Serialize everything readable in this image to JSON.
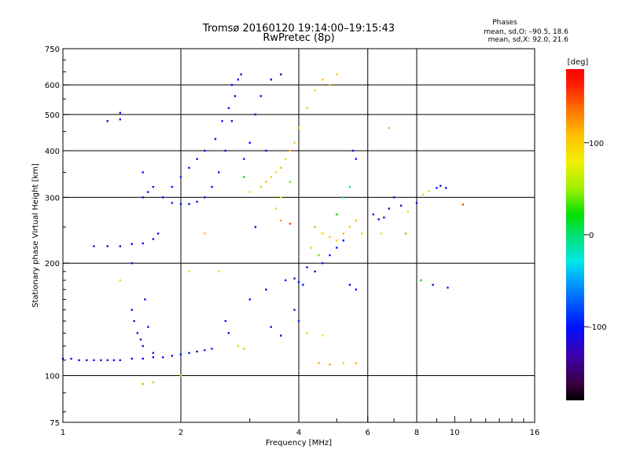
{
  "title": {
    "line1": "Tromsø 20160120 19:14:00–19:15:43",
    "line2": "RwPretec (8p)"
  },
  "stats": {
    "heading": "Phases",
    "o_line": "mean, sd,O: –90.5, 18.6",
    "x_line": "mean, sd,X:  92.0, 21.6"
  },
  "colorbar": {
    "unit": "[deg]",
    "range": [
      -180,
      180
    ],
    "ticks": [
      {
        "value": 100,
        "label": "100"
      },
      {
        "value": 0,
        "label": "0"
      },
      {
        "value": -100,
        "label": "-100"
      }
    ]
  },
  "chart_data": {
    "type": "scatter",
    "xlabel": "Frequency [MHz]",
    "ylabel": "Stationary phase Virtual Height [km]",
    "xscale": "log",
    "yscale": "log",
    "xlim": [
      1,
      16
    ],
    "ylim": [
      75,
      750
    ],
    "grid": true,
    "xticks": [
      {
        "value": 1,
        "label": "1",
        "major": true
      },
      {
        "value": 2,
        "label": "2",
        "major": true
      },
      {
        "value": 4,
        "label": "4",
        "major": true
      },
      {
        "value": 6,
        "label": "6",
        "major": true
      },
      {
        "value": 8,
        "label": "8",
        "major": true
      },
      {
        "value": 10,
        "label": "10",
        "major": false
      },
      {
        "value": 16,
        "label": "16",
        "major": true
      }
    ],
    "yticks": [
      {
        "value": 75,
        "label": "75",
        "major": false
      },
      {
        "value": 100,
        "label": "100",
        "major": true
      },
      {
        "value": 200,
        "label": "200",
        "major": true
      },
      {
        "value": 300,
        "label": "300",
        "major": true
      },
      {
        "value": 400,
        "label": "400",
        "major": true
      },
      {
        "value": 500,
        "label": "500",
        "major": true
      },
      {
        "value": 600,
        "label": "600",
        "major": true
      },
      {
        "value": 750,
        "label": "750",
        "major": false
      }
    ],
    "series": [
      {
        "points": [
          [
            1.0,
            111,
            -110
          ],
          [
            1.05,
            111,
            -115
          ],
          [
            1.1,
            110,
            -108
          ],
          [
            1.15,
            110,
            -105
          ],
          [
            1.2,
            110,
            -100
          ],
          [
            1.25,
            110,
            -110
          ],
          [
            1.3,
            110,
            -112
          ],
          [
            1.35,
            110,
            -105
          ],
          [
            1.4,
            110,
            -108
          ],
          [
            1.5,
            111,
            -110
          ],
          [
            1.6,
            111,
            -100
          ],
          [
            1.7,
            112,
            -105
          ],
          [
            1.8,
            112,
            -108
          ],
          [
            1.9,
            113,
            -110
          ],
          [
            2.0,
            114,
            -105
          ],
          [
            2.1,
            115,
            -100
          ],
          [
            2.2,
            116,
            -108
          ],
          [
            2.3,
            117,
            -110
          ],
          [
            2.4,
            118,
            -90
          ]
        ]
      },
      {
        "points": [
          [
            1.5,
            150,
            -110
          ],
          [
            1.52,
            140,
            -105
          ],
          [
            1.55,
            130,
            -100
          ],
          [
            1.58,
            125,
            -108
          ],
          [
            1.6,
            120,
            -110
          ],
          [
            1.62,
            160,
            -105
          ],
          [
            1.65,
            135,
            -100
          ],
          [
            1.7,
            115,
            -110
          ],
          [
            2.6,
            140,
            -100
          ],
          [
            2.65,
            130,
            -108
          ],
          [
            2.8,
            120,
            60
          ],
          [
            2.9,
            118,
            50
          ]
        ]
      },
      {
        "points": [
          [
            1.2,
            222,
            -110
          ],
          [
            1.3,
            222,
            -105
          ],
          [
            1.4,
            222,
            -108
          ],
          [
            1.5,
            225,
            -110
          ],
          [
            1.6,
            226,
            -100
          ],
          [
            1.7,
            232,
            -105
          ],
          [
            1.75,
            240,
            -108
          ],
          [
            1.6,
            300,
            -110
          ],
          [
            1.65,
            310,
            -105
          ],
          [
            1.7,
            320,
            -100
          ],
          [
            1.8,
            300,
            -108
          ],
          [
            1.9,
            290,
            -110
          ],
          [
            2.0,
            288,
            -105
          ],
          [
            2.1,
            288,
            -100
          ],
          [
            2.2,
            292,
            -108
          ],
          [
            2.3,
            300,
            -110
          ],
          [
            2.4,
            320,
            -105
          ],
          [
            2.5,
            350,
            -100
          ],
          [
            2.6,
            400,
            -108
          ],
          [
            2.7,
            480,
            -110
          ],
          [
            2.75,
            560,
            -105
          ],
          [
            2.8,
            620,
            -100
          ],
          [
            2.85,
            640,
            -110
          ]
        ]
      },
      {
        "points": [
          [
            1.9,
            320,
            -100
          ],
          [
            2.0,
            340,
            -90
          ],
          [
            2.1,
            360,
            -110
          ],
          [
            2.2,
            380,
            -100
          ],
          [
            2.3,
            400,
            -105
          ],
          [
            2.45,
            430,
            -110
          ],
          [
            2.55,
            480,
            -100
          ],
          [
            2.65,
            520,
            -108
          ],
          [
            2.7,
            600,
            -110
          ],
          [
            2.9,
            380,
            -100
          ],
          [
            3.0,
            420,
            -105
          ],
          [
            3.1,
            500,
            -110
          ],
          [
            3.2,
            560,
            -100
          ],
          [
            3.4,
            620,
            -108
          ],
          [
            3.6,
            640,
            -110
          ],
          [
            3.3,
            400,
            -105
          ]
        ]
      },
      {
        "points": [
          [
            3.2,
            320,
            100
          ],
          [
            3.3,
            330,
            110
          ],
          [
            3.4,
            340,
            100
          ],
          [
            3.5,
            350,
            95
          ],
          [
            3.6,
            360,
            110
          ],
          [
            3.7,
            380,
            100
          ],
          [
            3.8,
            400,
            105
          ],
          [
            3.9,
            420,
            100
          ],
          [
            4.0,
            460,
            110
          ],
          [
            4.2,
            520,
            100
          ],
          [
            4.4,
            580,
            95
          ],
          [
            4.6,
            620,
            110
          ],
          [
            4.8,
            600,
            100
          ],
          [
            5.0,
            640,
            105
          ],
          [
            3.5,
            280,
            60
          ],
          [
            3.6,
            300,
            80
          ],
          [
            3.8,
            330,
            40
          ],
          [
            2.9,
            340,
            20
          ]
        ]
      },
      {
        "points": [
          [
            3.7,
            180,
            -100
          ],
          [
            3.9,
            182,
            -110
          ],
          [
            4.0,
            178,
            -105
          ],
          [
            4.1,
            175,
            -100
          ],
          [
            3.0,
            160,
            -108
          ],
          [
            3.3,
            170,
            -110
          ],
          [
            3.4,
            135,
            -105
          ],
          [
            3.6,
            128,
            -100
          ],
          [
            3.9,
            150,
            -108
          ],
          [
            4.0,
            140,
            -90
          ],
          [
            4.2,
            195,
            -100
          ],
          [
            4.4,
            190,
            -110
          ],
          [
            4.6,
            200,
            -105
          ],
          [
            4.8,
            210,
            -100
          ],
          [
            5.0,
            220,
            -108
          ],
          [
            5.2,
            230,
            -110
          ],
          [
            5.4,
            175,
            -105
          ],
          [
            5.6,
            170,
            -100
          ]
        ]
      },
      {
        "points": [
          [
            4.4,
            250,
            110
          ],
          [
            4.6,
            240,
            100
          ],
          [
            4.8,
            235,
            105
          ],
          [
            5.0,
            230,
            100
          ],
          [
            5.2,
            240,
            110
          ],
          [
            5.4,
            250,
            100
          ],
          [
            5.6,
            260,
            105
          ],
          [
            5.8,
            240,
            100
          ],
          [
            5.0,
            270,
            20
          ],
          [
            5.2,
            300,
            -10
          ],
          [
            5.4,
            320,
            -20
          ],
          [
            5.6,
            380,
            -100
          ],
          [
            5.5,
            400,
            -110
          ],
          [
            4.5,
            210,
            40
          ],
          [
            4.3,
            220,
            60
          ],
          [
            3.8,
            255,
            150
          ],
          [
            3.6,
            260,
            120
          ],
          [
            4.5,
            108,
            110
          ],
          [
            4.8,
            107,
            120
          ],
          [
            5.2,
            108,
            100
          ],
          [
            5.6,
            108,
            115
          ],
          [
            4.2,
            130,
            60
          ],
          [
            4.6,
            128,
            80
          ]
        ]
      },
      {
        "points": [
          [
            6.2,
            270,
            -100
          ],
          [
            6.4,
            262,
            -110
          ],
          [
            6.6,
            265,
            -105
          ],
          [
            6.8,
            280,
            -100
          ],
          [
            7.0,
            300,
            -108
          ],
          [
            7.3,
            285,
            -110
          ],
          [
            7.6,
            275,
            100
          ],
          [
            8.0,
            290,
            -105
          ],
          [
            8.3,
            305,
            90
          ],
          [
            8.6,
            312,
            100
          ],
          [
            9.0,
            318,
            -110
          ],
          [
            9.2,
            322,
            -100
          ],
          [
            9.5,
            318,
            -105
          ],
          [
            10.5,
            287,
            150
          ],
          [
            6.5,
            240,
            60
          ],
          [
            7.5,
            240,
            40
          ],
          [
            6.8,
            460,
            110
          ],
          [
            8.8,
            175,
            -100
          ],
          [
            9.6,
            172,
            -110
          ],
          [
            8.2,
            180,
            20
          ]
        ]
      },
      {
        "points": [
          [
            1.4,
            505,
            -110
          ],
          [
            1.4,
            485,
            -100
          ],
          [
            1.3,
            480,
            -105
          ],
          [
            1.6,
            350,
            -100
          ],
          [
            1.5,
            200,
            -110
          ],
          [
            1.6,
            95,
            40
          ],
          [
            1.7,
            96,
            110
          ],
          [
            2.0,
            100,
            100
          ],
          [
            1.4,
            180,
            60
          ],
          [
            2.3,
            240,
            110
          ],
          [
            2.1,
            190,
            100
          ],
          [
            2.5,
            190,
            100
          ],
          [
            3.0,
            310,
            100
          ],
          [
            3.1,
            250,
            -100
          ]
        ]
      }
    ]
  }
}
